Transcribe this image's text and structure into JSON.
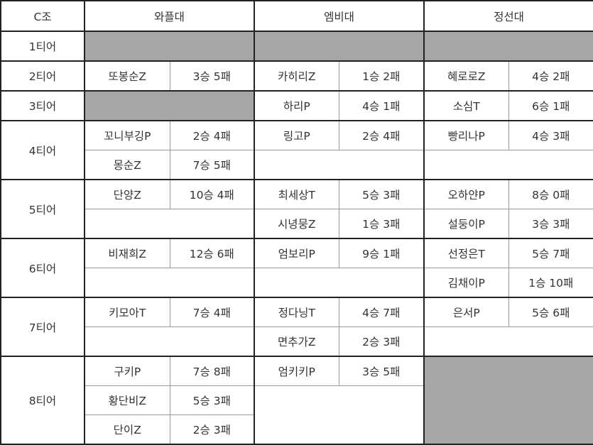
{
  "header": {
    "group": "C조",
    "teams": [
      "와플대",
      "엠비대",
      "정선대"
    ]
  },
  "colors": {
    "blocked": "#a6a6a6",
    "border": "#222222"
  },
  "tiers": [
    {
      "label": "1티어",
      "rows": 1,
      "teams": [
        {
          "blocked": true
        },
        {
          "blocked": true
        },
        {
          "blocked": true
        }
      ]
    },
    {
      "label": "2티어",
      "rows": 1,
      "teams": [
        {
          "players": [
            {
              "name": "또봉순Z",
              "record": "3승 5패"
            }
          ]
        },
        {
          "players": [
            {
              "name": "카히리Z",
              "record": "1승 2패"
            }
          ]
        },
        {
          "players": [
            {
              "name": "혜로로Z",
              "record": "4승 2패"
            }
          ]
        }
      ]
    },
    {
      "label": "3티어",
      "rows": 1,
      "teams": [
        {
          "blocked": true
        },
        {
          "players": [
            {
              "name": "하리P",
              "record": "4승 1패"
            }
          ]
        },
        {
          "players": [
            {
              "name": "소심T",
              "record": "6승 1패"
            }
          ]
        }
      ]
    },
    {
      "label": "4티어",
      "rows": 2,
      "teams": [
        {
          "players": [
            {
              "name": "꼬니부깅P",
              "record": "2승 4패"
            },
            {
              "name": "몽순Z",
              "record": "7승 5패"
            }
          ]
        },
        {
          "players": [
            {
              "name": "링고P",
              "record": "2승 4패"
            }
          ]
        },
        {
          "players": [
            {
              "name": "빵리나P",
              "record": "4승 3패"
            }
          ]
        }
      ]
    },
    {
      "label": "5티어",
      "rows": 2,
      "teams": [
        {
          "players": [
            {
              "name": "단양Z",
              "record": "10승 4패"
            }
          ]
        },
        {
          "players": [
            {
              "name": "최세상T",
              "record": "5승 3패"
            },
            {
              "name": "시녕뭉Z",
              "record": "1승 3패"
            }
          ]
        },
        {
          "players": [
            {
              "name": "오하얀P",
              "record": "8승 0패"
            },
            {
              "name": "설둥이P",
              "record": "3승 3패"
            }
          ]
        }
      ]
    },
    {
      "label": "6티어",
      "rows": 2,
      "teams": [
        {
          "players": [
            {
              "name": "비재희Z",
              "record": "12승 6패"
            }
          ]
        },
        {
          "players": [
            {
              "name": "엄보리P",
              "record": "9승 1패"
            }
          ]
        },
        {
          "players": [
            {
              "name": "선정은T",
              "record": "5승 7패"
            },
            {
              "name": "김채이P",
              "record": "1승 10패"
            }
          ]
        }
      ]
    },
    {
      "label": "7티어",
      "rows": 2,
      "teams": [
        {
          "players": [
            {
              "name": "키모아T",
              "record": "7승 4패"
            }
          ]
        },
        {
          "players": [
            {
              "name": "정다닝T",
              "record": "4승 7패"
            },
            {
              "name": "면추가Z",
              "record": "2승 3패"
            }
          ]
        },
        {
          "players": [
            {
              "name": "은서P",
              "record": "5승 6패"
            }
          ]
        }
      ]
    },
    {
      "label": "8티어",
      "rows": 3,
      "teams": [
        {
          "players": [
            {
              "name": "구키P",
              "record": "7승 8패"
            },
            {
              "name": "황단비Z",
              "record": "5승 3패"
            },
            {
              "name": "단이Z",
              "record": "2승 3패"
            }
          ]
        },
        {
          "players": [
            {
              "name": "엄키키P",
              "record": "3승 5패"
            }
          ]
        },
        {
          "blocked": true
        }
      ]
    }
  ]
}
